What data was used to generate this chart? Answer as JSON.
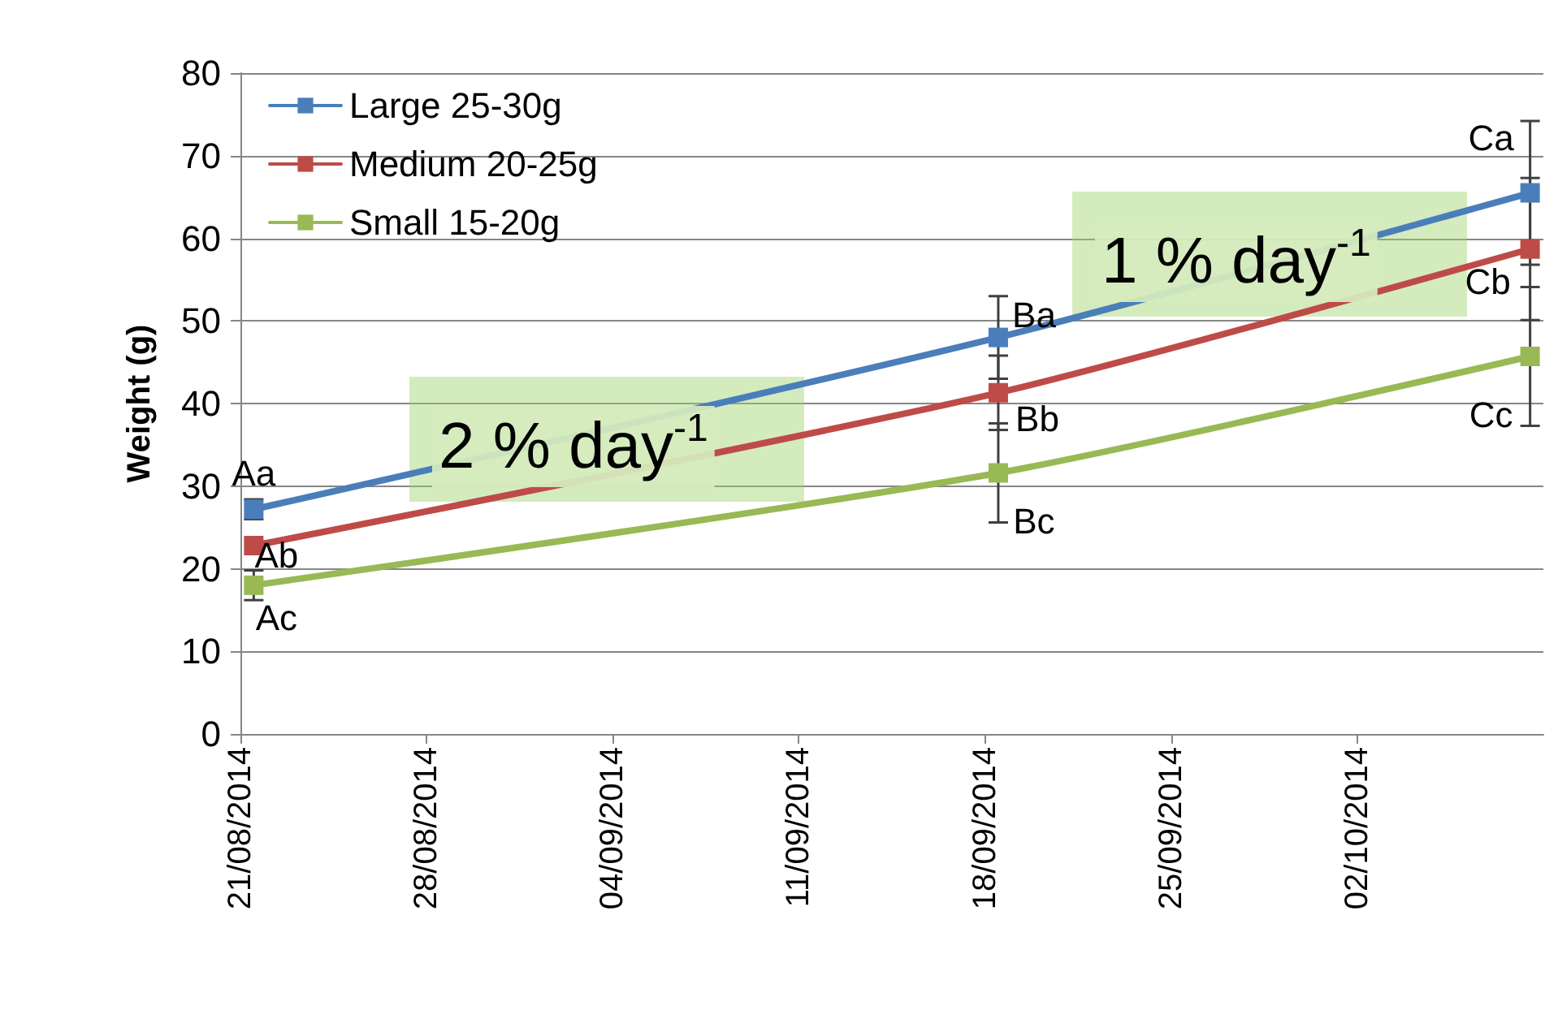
{
  "chart_data": {
    "type": "line",
    "ylabel": "Weight (g)",
    "x": [
      "2014-08-21T12:00",
      "2014-09-18T12:00",
      "2014-10-08T12:00"
    ],
    "xlim": [
      "2014-08-21",
      "2014-10-09"
    ],
    "xticks": [
      {
        "value": "2014-08-21",
        "label": "21/08/2014"
      },
      {
        "value": "2014-08-28",
        "label": "28/08/2014"
      },
      {
        "value": "2014-09-04",
        "label": "04/09/2014"
      },
      {
        "value": "2014-09-11",
        "label": "11/09/2014"
      },
      {
        "value": "2014-09-18",
        "label": "18/09/2014"
      },
      {
        "value": "2014-09-25",
        "label": "25/09/2014"
      },
      {
        "value": "2014-10-02",
        "label": "02/10/2014"
      }
    ],
    "ylim": [
      0,
      80
    ],
    "yticks": [
      0,
      10,
      20,
      30,
      40,
      50,
      60,
      70,
      80
    ],
    "series": [
      {
        "name": "Large 25-30g",
        "color": "#4a7ebb",
        "values": [
          27.2,
          48,
          65.5
        ],
        "errors": [
          1.2,
          5,
          8.7
        ],
        "value_labels": [
          "Aa",
          "Ba",
          "Ca"
        ]
      },
      {
        "name": "Medium 20-25g",
        "color": "#be4b48",
        "values": [
          22.8,
          41.3,
          58.7
        ],
        "errors": [
          null,
          4.5,
          8.6
        ],
        "value_labels": [
          "Ab",
          "Bb",
          "Cb"
        ]
      },
      {
        "name": "Small 15-20g",
        "color": "#98b954",
        "values": [
          18,
          31.6,
          45.7
        ],
        "errors": [
          1.8,
          6,
          8.4
        ],
        "value_labels": [
          "Ac",
          "Bc",
          "Cc"
        ]
      }
    ],
    "annotations": [
      "2 % day$^{-1}$",
      "1 % day$^{-1}$"
    ],
    "grid": "y",
    "legend": "top left",
    "marker": "square",
    "line_style": "solid"
  }
}
